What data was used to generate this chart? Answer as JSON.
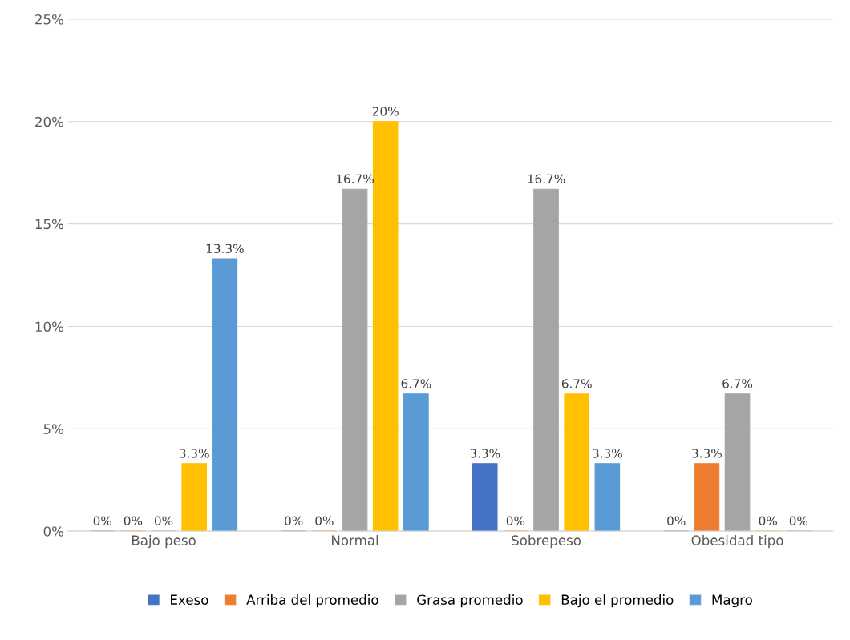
{
  "chart_data": {
    "type": "bar",
    "categories": [
      "Bajo peso",
      "Normal",
      "Sobrepeso",
      "Obesidad tipo"
    ],
    "series": [
      {
        "name": "Exeso",
        "color": "#4472c4",
        "values": [
          0,
          0,
          3.3,
          0
        ],
        "value_labels": [
          "0%",
          "0%",
          "3.3%",
          "0%"
        ]
      },
      {
        "name": "Arriba del promedio",
        "color": "#ed7d31",
        "values": [
          0,
          0,
          0,
          3.3
        ],
        "value_labels": [
          "0%",
          "0%",
          "0%",
          "3.3%"
        ]
      },
      {
        "name": "Grasa promedio",
        "color": "#a5a5a5",
        "values": [
          0,
          16.7,
          16.7,
          6.7
        ],
        "value_labels": [
          "0%",
          "16.7%",
          "16.7%",
          "6.7%"
        ]
      },
      {
        "name": "Bajo el promedio",
        "color": "#ffc000",
        "values": [
          3.3,
          20,
          6.7,
          0
        ],
        "value_labels": [
          "3.3%",
          "20%",
          "6.7%",
          "0%"
        ]
      },
      {
        "name": "Magro",
        "color": "#5b9bd5",
        "values": [
          13.3,
          6.7,
          3.3,
          0
        ],
        "value_labels": [
          "13.3%",
          "6.7%",
          "3.3%",
          "0%"
        ]
      }
    ],
    "ylim": [
      0,
      25
    ],
    "yticks": [
      {
        "value": 0,
        "label": "0%"
      },
      {
        "value": 5,
        "label": "5%"
      },
      {
        "value": 10,
        "label": "10%"
      },
      {
        "value": 15,
        "label": "15%"
      },
      {
        "value": 20,
        "label": "20%"
      },
      {
        "value": 25,
        "label": "25%"
      }
    ],
    "grid": "y",
    "legend": "bottom"
  }
}
